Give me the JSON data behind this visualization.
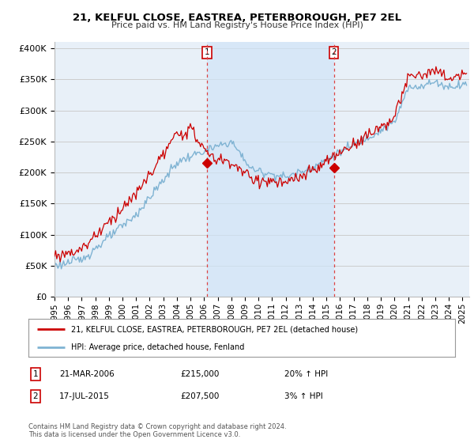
{
  "title": "21, KELFUL CLOSE, EASTREA, PETERBOROUGH, PE7 2EL",
  "subtitle": "Price paid vs. HM Land Registry's House Price Index (HPI)",
  "ylabel_ticks": [
    "£0",
    "£50K",
    "£100K",
    "£150K",
    "£200K",
    "£250K",
    "£300K",
    "£350K",
    "£400K"
  ],
  "ylabel_values": [
    0,
    50000,
    100000,
    150000,
    200000,
    250000,
    300000,
    350000,
    400000
  ],
  "ylim": [
    0,
    410000
  ],
  "xlim_start": 1995.0,
  "xlim_end": 2025.5,
  "background_color": "#ffffff",
  "plot_bg_color": "#e8f0f8",
  "plot_bg_shaded": "#d0e4f7",
  "grid_color": "#cccccc",
  "red_line_color": "#cc0000",
  "blue_line_color": "#7fb3d3",
  "transaction1_x": 2006.22,
  "transaction1_y": 215000,
  "transaction2_x": 2015.54,
  "transaction2_y": 207500,
  "vline_color": "#dd4444",
  "legend_label_red": "21, KELFUL CLOSE, EASTREA, PETERBOROUGH, PE7 2EL (detached house)",
  "legend_label_blue": "HPI: Average price, detached house, Fenland",
  "table_row1_num": "1",
  "table_row1_date": "21-MAR-2006",
  "table_row1_price": "£215,000",
  "table_row1_hpi": "20% ↑ HPI",
  "table_row2_num": "2",
  "table_row2_date": "17-JUL-2015",
  "table_row2_price": "£207,500",
  "table_row2_hpi": "3% ↑ HPI",
  "footer": "Contains HM Land Registry data © Crown copyright and database right 2024.\nThis data is licensed under the Open Government Licence v3.0.",
  "xtick_years": [
    1995,
    1996,
    1997,
    1998,
    1999,
    2000,
    2001,
    2002,
    2003,
    2004,
    2005,
    2006,
    2007,
    2008,
    2009,
    2010,
    2011,
    2012,
    2013,
    2014,
    2015,
    2016,
    2017,
    2018,
    2019,
    2020,
    2021,
    2022,
    2023,
    2024,
    2025
  ]
}
